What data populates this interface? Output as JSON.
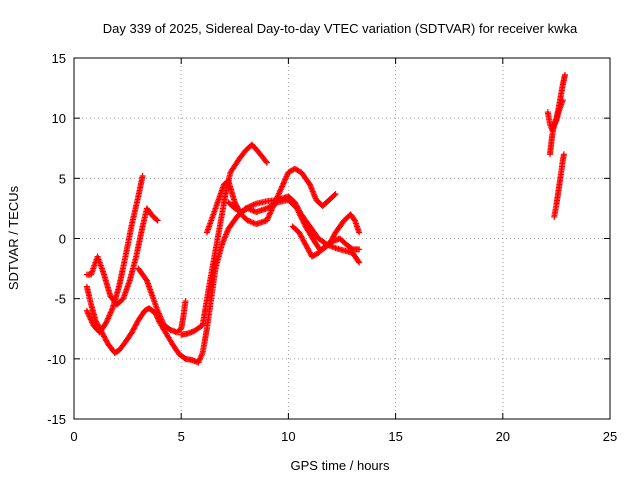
{
  "chart_data": {
    "type": "scatter",
    "title": "Day 339 of 2025, Sidereal Day-to-day VTEC variation (SDTVAR) for receiver kwka",
    "xlabel": "GPS time / hours",
    "ylabel": "SDTVAR / TECUs",
    "xlim": [
      0,
      25
    ],
    "ylim": [
      -15,
      15
    ],
    "xticks": [
      "0",
      "5",
      "10",
      "15",
      "20",
      "25"
    ],
    "yticks": [
      "-15",
      "-10",
      "-5",
      "0",
      "5",
      "10",
      "15"
    ],
    "grid": true,
    "marker": "+",
    "color": "#ff0000",
    "traces": [
      [
        [
          0.6,
          -4.0
        ],
        [
          0.8,
          -5.5
        ],
        [
          1.0,
          -6.8
        ],
        [
          1.3,
          -7.8
        ],
        [
          1.6,
          -8.8
        ],
        [
          1.9,
          -9.5
        ],
        [
          2.1,
          -9.3
        ],
        [
          2.4,
          -8.6
        ],
        [
          2.7,
          -7.8
        ],
        [
          3.0,
          -6.8
        ],
        [
          3.3,
          -6.0
        ],
        [
          3.5,
          -5.8
        ],
        [
          3.8,
          -6.2
        ],
        [
          4.0,
          -7.0
        ],
        [
          4.3,
          -7.9
        ],
        [
          4.6,
          -8.8
        ],
        [
          4.9,
          -9.6
        ],
        [
          5.2,
          -10.0
        ],
        [
          5.5,
          -10.1
        ],
        [
          5.8,
          -10.3
        ],
        [
          6.0,
          -9.5
        ],
        [
          6.2,
          -7.5
        ],
        [
          6.4,
          -5.0
        ],
        [
          6.6,
          -2.5
        ],
        [
          6.9,
          -0.5
        ],
        [
          7.2,
          0.8
        ],
        [
          7.6,
          1.8
        ],
        [
          8.0,
          2.5
        ],
        [
          8.5,
          2.9
        ],
        [
          9.0,
          3.1
        ],
        [
          9.5,
          3.2
        ],
        [
          10.0,
          3.5
        ],
        [
          10.3,
          3.0
        ],
        [
          10.6,
          2.0
        ],
        [
          11.0,
          1.0
        ],
        [
          11.4,
          0.0
        ],
        [
          11.8,
          -0.5
        ],
        [
          12.2,
          -0.8
        ],
        [
          12.6,
          -1.0
        ],
        [
          13.0,
          -1.2
        ],
        [
          13.3,
          -2.0
        ]
      ],
      [
        [
          0.6,
          -6.0
        ],
        [
          0.9,
          -7.2
        ],
        [
          1.2,
          -7.8
        ],
        [
          1.5,
          -7.0
        ],
        [
          1.8,
          -5.8
        ],
        [
          2.1,
          -4.0
        ],
        [
          2.4,
          -1.5
        ],
        [
          2.7,
          1.2
        ],
        [
          3.0,
          3.5
        ],
        [
          3.2,
          5.2
        ]
      ],
      [
        [
          0.6,
          -3.0
        ],
        [
          0.8,
          -3.0
        ],
        [
          1.1,
          -1.5
        ],
        [
          1.4,
          -3.0
        ],
        [
          1.7,
          -4.8
        ],
        [
          2.0,
          -5.5
        ],
        [
          2.3,
          -5.0
        ],
        [
          2.6,
          -3.5
        ],
        [
          2.9,
          -1.5
        ],
        [
          3.2,
          1.0
        ],
        [
          3.4,
          2.5
        ],
        [
          3.7,
          1.8
        ],
        [
          3.9,
          1.5
        ]
      ],
      [
        [
          3.0,
          -2.5
        ],
        [
          3.2,
          -3.0
        ],
        [
          3.4,
          -3.5
        ],
        [
          3.6,
          -4.5
        ],
        [
          3.9,
          -6.0
        ],
        [
          4.2,
          -7.2
        ],
        [
          4.5,
          -7.6
        ],
        [
          4.8,
          -7.8
        ],
        [
          5.0,
          -7.5
        ],
        [
          5.1,
          -6.5
        ],
        [
          5.2,
          -5.2
        ]
      ],
      [
        [
          5.0,
          -8.0
        ],
        [
          5.3,
          -7.9
        ],
        [
          5.6,
          -7.7
        ],
        [
          6.0,
          -7.2
        ],
        [
          6.3,
          -4.0
        ],
        [
          6.6,
          -1.0
        ],
        [
          6.9,
          2.0
        ],
        [
          7.1,
          4.0
        ],
        [
          7.3,
          5.5
        ],
        [
          7.7,
          6.6
        ],
        [
          8.0,
          7.3
        ],
        [
          8.3,
          7.8
        ],
        [
          8.6,
          7.2
        ],
        [
          9.0,
          6.3
        ]
      ],
      [
        [
          6.2,
          0.5
        ],
        [
          6.5,
          2.0
        ],
        [
          6.8,
          3.5
        ],
        [
          7.0,
          4.5
        ],
        [
          7.2,
          4.8
        ],
        [
          7.5,
          3.0
        ],
        [
          7.8,
          2.0
        ],
        [
          8.1,
          1.5
        ],
        [
          8.5,
          1.2
        ],
        [
          9.0,
          1.5
        ],
        [
          9.5,
          3.5
        ],
        [
          10.0,
          5.5
        ],
        [
          10.3,
          5.8
        ],
        [
          10.6,
          5.5
        ],
        [
          11.0,
          4.5
        ],
        [
          11.3,
          3.2
        ],
        [
          11.6,
          2.7
        ],
        [
          11.9,
          3.2
        ],
        [
          12.2,
          3.7
        ]
      ],
      [
        [
          7.2,
          3.0
        ],
        [
          7.5,
          2.5
        ],
        [
          7.8,
          2.2
        ],
        [
          8.1,
          2.5
        ],
        [
          8.5,
          2.2
        ],
        [
          9.0,
          2.5
        ],
        [
          9.5,
          3.0
        ],
        [
          10.0,
          3.2
        ],
        [
          10.4,
          2.5
        ],
        [
          10.8,
          1.0
        ],
        [
          11.2,
          -0.2
        ],
        [
          11.5,
          -1.0
        ],
        [
          11.9,
          -0.5
        ],
        [
          12.2,
          0.5
        ],
        [
          12.6,
          1.5
        ],
        [
          12.9,
          2.0
        ],
        [
          13.1,
          1.5
        ],
        [
          13.3,
          0.5
        ]
      ],
      [
        [
          10.2,
          1.0
        ],
        [
          10.5,
          0.5
        ],
        [
          10.8,
          -0.5
        ],
        [
          11.1,
          -1.5
        ],
        [
          11.4,
          -1.2
        ],
        [
          11.8,
          -0.5
        ],
        [
          12.1,
          -0.2
        ],
        [
          12.4,
          0.0
        ],
        [
          12.7,
          -0.5
        ],
        [
          13.0,
          -0.9
        ],
        [
          13.3,
          -0.9
        ]
      ],
      [
        [
          22.2,
          7.0
        ],
        [
          22.3,
          8.5
        ],
        [
          22.4,
          9.5
        ],
        [
          22.5,
          10.0
        ],
        [
          22.6,
          10.8
        ],
        [
          22.7,
          11.8
        ],
        [
          22.8,
          12.8
        ],
        [
          22.9,
          13.6
        ]
      ],
      [
        [
          22.1,
          10.5
        ],
        [
          22.2,
          9.5
        ],
        [
          22.3,
          9.0
        ],
        [
          22.5,
          9.8
        ],
        [
          22.6,
          10.5
        ],
        [
          22.7,
          11.0
        ],
        [
          22.8,
          11.5
        ]
      ],
      [
        [
          22.4,
          1.8
        ],
        [
          22.5,
          2.8
        ],
        [
          22.6,
          4.0
        ],
        [
          22.7,
          5.2
        ],
        [
          22.8,
          6.5
        ],
        [
          22.85,
          7.0
        ]
      ]
    ]
  }
}
